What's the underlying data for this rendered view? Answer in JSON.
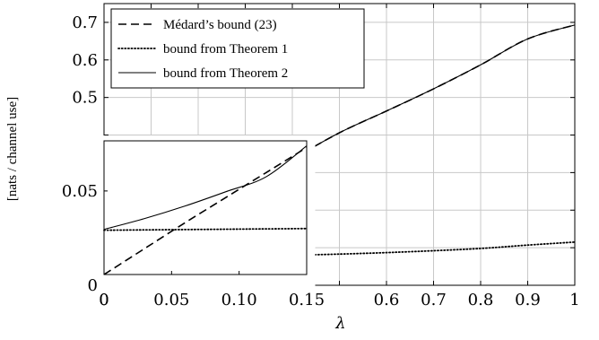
{
  "chart_data": [
    {
      "type": "line",
      "title": "",
      "xlabel": "λ",
      "ylabel": "[nats / channel use]",
      "xlim": [
        0,
        1
      ],
      "ylim": [
        0,
        0.75
      ],
      "xticks": [
        0,
        0.1,
        0.2,
        0.3,
        0.4,
        0.5,
        0.6,
        0.7,
        0.8,
        0.9,
        1.0
      ],
      "xtick_labels": [
        "0",
        "",
        "",
        "",
        "",
        "",
        "0.6",
        "0.7",
        "0.8",
        "0.9",
        "1"
      ],
      "yticks": [
        0,
        0.1,
        0.2,
        0.3,
        0.4,
        0.5,
        0.6,
        0.7
      ],
      "ytick_labels": [
        "",
        "",
        "",
        "",
        "",
        "0.5",
        "0.6",
        "0.7"
      ],
      "grid": true,
      "legend_placement": "top-left",
      "series": [
        {
          "name": "Médard’s bound (23)",
          "style": "dashed",
          "color": "#000000",
          "x": [
            0.4,
            0.5,
            0.6,
            0.7,
            0.8,
            0.9,
            1.0
          ],
          "y": [
            0.336,
            0.406,
            0.464,
            0.523,
            0.587,
            0.656,
            0.693
          ]
        },
        {
          "name": "bound from Theorem 1",
          "style": "dotted",
          "color": "#000000",
          "x": [
            0.4,
            0.5,
            0.6,
            0.7,
            0.8,
            0.9,
            1.0
          ],
          "y": [
            0.08,
            0.083,
            0.087,
            0.092,
            0.098,
            0.107,
            0.115
          ]
        },
        {
          "name": "bound from Theorem 2",
          "style": "solid",
          "color": "#000000",
          "x": [
            0.4,
            0.5,
            0.6,
            0.7,
            0.8,
            0.9,
            1.0
          ],
          "y": [
            0.336,
            0.406,
            0.464,
            0.523,
            0.587,
            0.656,
            0.693
          ]
        }
      ]
    },
    {
      "type": "line",
      "title": "",
      "xlabel": "",
      "ylabel": "",
      "xlim": [
        0,
        0.15
      ],
      "ylim": [
        0,
        0.08
      ],
      "xticks": [
        0,
        0.05,
        0.1,
        0.15
      ],
      "xtick_labels": [
        "0",
        "0.05",
        "0.10",
        "0.15"
      ],
      "yticks": [
        0,
        0.05
      ],
      "ytick_labels": [
        "0",
        "0.05"
      ],
      "grid": false,
      "series": [
        {
          "name": "Médard’s bound (23)",
          "style": "dashed",
          "color": "#000000",
          "x": [
            0,
            0.03,
            0.06,
            0.09,
            0.12,
            0.15
          ],
          "y": [
            0,
            0.0155,
            0.031,
            0.046,
            0.061,
            0.076
          ]
        },
        {
          "name": "bound from Theorem 1",
          "style": "dotted",
          "color": "#000000",
          "x": [
            0,
            0.03,
            0.06,
            0.09,
            0.12,
            0.15
          ],
          "y": [
            0.0265,
            0.0267,
            0.0269,
            0.0271,
            0.0273,
            0.0275
          ]
        },
        {
          "name": "bound from Theorem 2",
          "style": "solid",
          "color": "#000000",
          "x": [
            0,
            0.03,
            0.06,
            0.09,
            0.12,
            0.15
          ],
          "y": [
            0.027,
            0.0335,
            0.041,
            0.0495,
            0.0585,
            0.077
          ]
        }
      ]
    }
  ]
}
